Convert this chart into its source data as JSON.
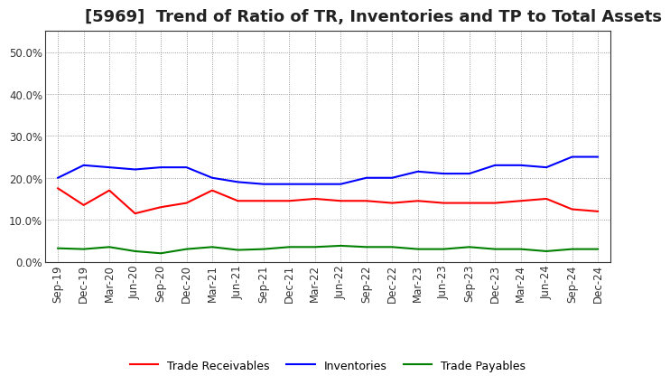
{
  "title": "[5969]  Trend of Ratio of TR, Inventories and TP to Total Assets",
  "labels": [
    "Sep-19",
    "Dec-19",
    "Mar-20",
    "Jun-20",
    "Sep-20",
    "Dec-20",
    "Mar-21",
    "Jun-21",
    "Sep-21",
    "Dec-21",
    "Mar-22",
    "Jun-22",
    "Sep-22",
    "Dec-22",
    "Mar-23",
    "Jun-23",
    "Sep-23",
    "Dec-23",
    "Mar-24",
    "Jun-24",
    "Sep-24",
    "Dec-24"
  ],
  "trade_receivables": [
    17.5,
    13.5,
    17.0,
    11.5,
    13.0,
    14.0,
    17.0,
    14.5,
    14.5,
    14.5,
    15.0,
    14.5,
    14.5,
    14.0,
    14.5,
    14.0,
    14.0,
    14.0,
    14.5,
    15.0,
    12.5,
    12.0
  ],
  "inventories": [
    20.0,
    23.0,
    22.5,
    22.0,
    22.5,
    22.5,
    20.0,
    19.0,
    18.5,
    18.5,
    18.5,
    18.5,
    20.0,
    20.0,
    21.5,
    21.0,
    21.0,
    23.0,
    23.0,
    22.5,
    25.0,
    25.0
  ],
  "trade_payables": [
    3.2,
    3.0,
    3.5,
    2.5,
    2.0,
    3.0,
    3.5,
    2.8,
    3.0,
    3.5,
    3.5,
    3.8,
    3.5,
    3.5,
    3.0,
    3.0,
    3.5,
    3.0,
    3.0,
    2.5,
    3.0,
    3.0
  ],
  "ylim": [
    0,
    55
  ],
  "yticks": [
    0.0,
    10.0,
    20.0,
    30.0,
    40.0,
    50.0
  ],
  "color_tr": "#ff0000",
  "color_inv": "#0000ff",
  "color_tp": "#008000",
  "background_color": "#ffffff",
  "grid_color": "#808080",
  "line_width": 1.5,
  "title_fontsize": 13,
  "tick_fontsize": 8.5,
  "legend_fontsize": 9
}
